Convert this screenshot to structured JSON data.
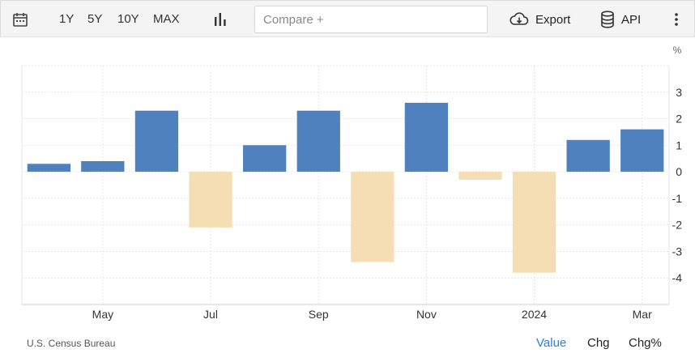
{
  "toolbar": {
    "ranges": [
      "1Y",
      "5Y",
      "10Y",
      "MAX"
    ],
    "compare_placeholder": "Compare +",
    "export_label": "Export",
    "api_label": "API"
  },
  "footer": {
    "source": "U.S. Census Bureau",
    "views": [
      "Value",
      "Chg",
      "Chg%"
    ],
    "active_view": "Value"
  },
  "colors": {
    "positive": "#4e81bd",
    "negative": "#f5deb3",
    "accent": "#2b7fd4"
  },
  "chart_data": {
    "type": "bar",
    "unit_label": "%",
    "categories": [
      "2023-04",
      "2023-05",
      "2023-06",
      "2023-07",
      "2023-08",
      "2023-09",
      "2023-10",
      "2023-11",
      "2023-12",
      "2024-01",
      "2024-02",
      "2024-03"
    ],
    "values": [
      0.3,
      0.4,
      2.3,
      -2.1,
      1.0,
      2.3,
      -3.4,
      2.6,
      -0.3,
      -3.8,
      1.2,
      1.6
    ],
    "x_tick_labels": [
      {
        "category": "2023-05",
        "label": "May"
      },
      {
        "category": "2023-07",
        "label": "Jul"
      },
      {
        "category": "2023-09",
        "label": "Sep"
      },
      {
        "category": "2023-11",
        "label": "Nov"
      },
      {
        "category": "2024-01",
        "label": "2024"
      },
      {
        "category": "2024-03",
        "label": "Mar"
      }
    ],
    "y_ticks": [
      3,
      2,
      1,
      0,
      -1,
      -2,
      -3,
      -4
    ],
    "ylim": [
      -5,
      4
    ],
    "grid": true,
    "y_axis_side": "right"
  }
}
